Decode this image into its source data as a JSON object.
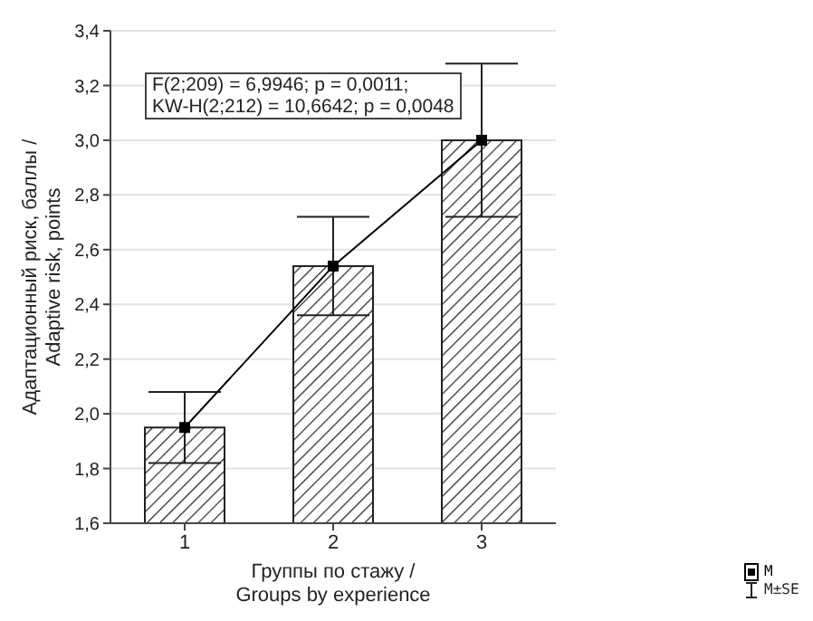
{
  "chart_data": {
    "type": "bar",
    "xlabel": "Группы по стажу /\nGroups by experience",
    "ylabel": "Адаптационный риск, баллы /\nAdaptive risk, points",
    "categories": [
      "1",
      "2",
      "3"
    ],
    "series": [
      {
        "name": "M±SE",
        "color": "#222222",
        "values": [
          1.95,
          2.54,
          3.0
        ],
        "errors": [
          0.13,
          0.18,
          0.28
        ]
      },
      {
        "type": "line",
        "name": "M",
        "color": "#000000",
        "values": [
          1.95,
          2.54,
          3.0
        ],
        "marker": "square",
        "line_style": "solid"
      }
    ],
    "ylim": [
      1.6,
      3.4
    ],
    "yticks": [
      {
        "value": 1.6,
        "label": "1,6"
      },
      {
        "value": 1.8,
        "label": "1,8"
      },
      {
        "value": 2.0,
        "label": "2,0"
      },
      {
        "value": 2.2,
        "label": "2,2"
      },
      {
        "value": 2.4,
        "label": "2,4"
      },
      {
        "value": 2.6,
        "label": "2,6"
      },
      {
        "value": 2.8,
        "label": "2,8"
      },
      {
        "value": 3.0,
        "label": "3,0"
      },
      {
        "value": 3.2,
        "label": "3,2"
      },
      {
        "value": 3.4,
        "label": "3,4"
      }
    ],
    "grid": "y",
    "legend": "bottom right",
    "annotations": [
      "F(2;209) = 6,9946; p = 0,0011;\nKW-H(2;212) = 10,6642; p = 0,0048"
    ]
  }
}
